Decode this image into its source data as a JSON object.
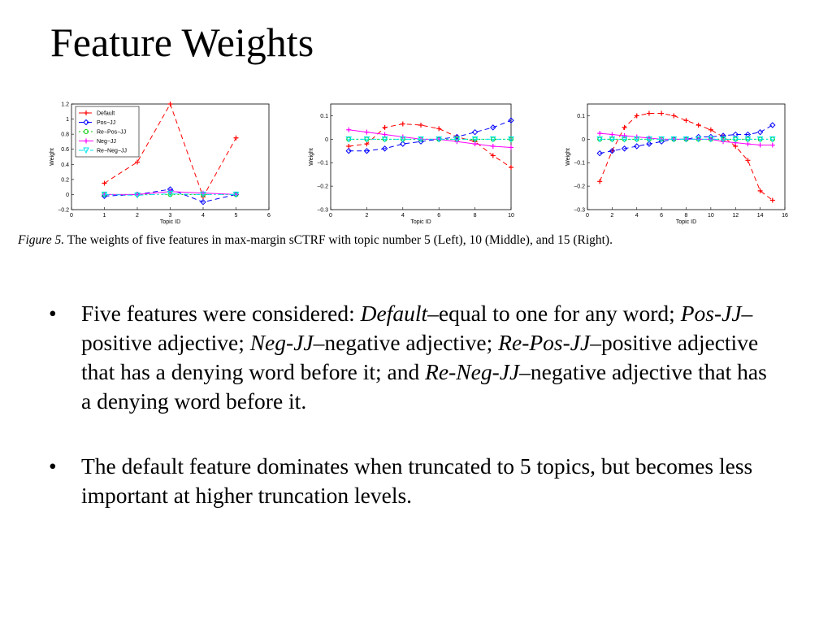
{
  "slide": {
    "title": "Feature Weights"
  },
  "caption": {
    "prefix": "Figure 5.",
    "text": "The weights of five features in max-margin sCTRF with topic number 5 (Left), 10 (Middle), and 15 (Right)."
  },
  "bullets": [
    {
      "marker": "•",
      "parts": [
        {
          "t": "Five features were considered: "
        },
        {
          "t": "Default",
          "i": true
        },
        {
          "t": "–equal to one for any word; "
        },
        {
          "t": "Pos",
          "i": true
        },
        {
          "t": "-"
        },
        {
          "t": "JJ",
          "i": true
        },
        {
          "t": "–positive adjective; "
        },
        {
          "t": "Neg",
          "i": true
        },
        {
          "t": "-"
        },
        {
          "t": "JJ",
          "i": true
        },
        {
          "t": "–negative adjective; "
        },
        {
          "t": "Re",
          "i": true
        },
        {
          "t": "-"
        },
        {
          "t": "Pos",
          "i": true
        },
        {
          "t": "-"
        },
        {
          "t": "JJ",
          "i": true
        },
        {
          "t": "–positive adjective that has a denying word before it; and "
        },
        {
          "t": "Re",
          "i": true
        },
        {
          "t": "-"
        },
        {
          "t": "Neg",
          "i": true
        },
        {
          "t": "-"
        },
        {
          "t": "JJ",
          "i": true
        },
        {
          "t": "–negative adjective that has a denying word before it."
        }
      ]
    },
    {
      "marker": "•",
      "parts": [
        {
          "t": "The default feature dominates when truncated to 5 topics, but becomes less important at higher truncation levels."
        }
      ]
    }
  ],
  "series_styles": [
    {
      "name": "Default",
      "color": "#ff0000",
      "marker": "plus",
      "dash": "6,4"
    },
    {
      "name": "Pos-JJ",
      "color": "#0000ff",
      "marker": "diamond",
      "dash": "6,4"
    },
    {
      "name": "Re-Pos-JJ",
      "color": "#00cc00",
      "marker": "circle",
      "dash": "2,3"
    },
    {
      "name": "Neg-JJ",
      "color": "#ff00ff",
      "marker": "plus",
      "dash": ""
    },
    {
      "name": "Re-Neg-JJ",
      "color": "#00e5ee",
      "marker": "triangle",
      "dash": "6,3,2,3"
    }
  ],
  "chart_data": [
    {
      "type": "line",
      "xlabel": "Topic ID",
      "ylabel": "Weight",
      "xlim": [
        0,
        6
      ],
      "ylim": [
        -0.2,
        1.2
      ],
      "xticks": [
        "0",
        "1",
        "2",
        "3",
        "4",
        "5",
        "6"
      ],
      "yticks": [
        "−0.2",
        "0",
        "0.2",
        "0.4",
        "0.6",
        "0.8",
        "1",
        "1.2"
      ],
      "legend_placement": "top-left",
      "x": [
        1,
        2,
        3,
        4,
        5
      ],
      "series": [
        {
          "name": "Default",
          "values": [
            0.15,
            0.43,
            1.2,
            -0.03,
            0.75
          ]
        },
        {
          "name": "Pos−JJ",
          "values": [
            -0.02,
            0.0,
            0.07,
            -0.1,
            0.0
          ]
        },
        {
          "name": "Re−Pos−JJ",
          "values": [
            0.0,
            0.0,
            0.0,
            0.0,
            0.0
          ]
        },
        {
          "name": "Neg−JJ",
          "values": [
            0.0,
            0.0,
            0.04,
            0.02,
            0.0
          ]
        },
        {
          "name": "Re−Neg−JJ",
          "values": [
            0.0,
            -0.01,
            0.01,
            0.0,
            0.0
          ]
        }
      ]
    },
    {
      "type": "line",
      "xlabel": "Topic ID",
      "ylabel": "Weight",
      "xlim": [
        0,
        10
      ],
      "ylim": [
        -0.3,
        0.15
      ],
      "xticks": [
        "0",
        "2",
        "4",
        "6",
        "8",
        "10"
      ],
      "yticks": [
        "−0.3",
        "−0.2",
        "−0.1",
        "0",
        "0.1"
      ],
      "x": [
        1,
        2,
        3,
        4,
        5,
        6,
        7,
        8,
        9,
        10
      ],
      "series": [
        {
          "values": [
            -0.03,
            -0.02,
            0.05,
            0.065,
            0.06,
            0.045,
            0.01,
            -0.01,
            -0.07,
            -0.12
          ]
        },
        {
          "values": [
            -0.05,
            -0.05,
            -0.04,
            -0.02,
            -0.01,
            0.0,
            0.01,
            0.03,
            0.05,
            0.08
          ]
        },
        {
          "values": [
            0.0,
            0.0,
            0.0,
            0.0,
            0.0,
            0.0,
            0.0,
            0.0,
            0.0,
            0.0
          ]
        },
        {
          "values": [
            0.04,
            0.03,
            0.02,
            0.01,
            0.0,
            0.0,
            -0.01,
            -0.02,
            -0.03,
            -0.035
          ]
        },
        {
          "values": [
            0.0,
            0.0,
            0.0,
            0.0,
            0.0,
            0.0,
            0.0,
            0.0,
            0.0,
            0.0
          ]
        }
      ]
    },
    {
      "type": "line",
      "xlabel": "Topic ID",
      "ylabel": "Weight",
      "xlim": [
        0,
        16
      ],
      "ylim": [
        -0.3,
        0.15
      ],
      "xticks": [
        "0",
        "2",
        "4",
        "6",
        "8",
        "10",
        "12",
        "14",
        "16"
      ],
      "yticks": [
        "−0.3",
        "−0.2",
        "−0.1",
        "0",
        "0.1"
      ],
      "x": [
        1,
        2,
        3,
        4,
        5,
        6,
        7,
        8,
        9,
        10,
        11,
        12,
        13,
        14,
        15
      ],
      "series": [
        {
          "values": [
            -0.18,
            -0.05,
            0.05,
            0.1,
            0.11,
            0.11,
            0.1,
            0.08,
            0.06,
            0.04,
            0.01,
            -0.03,
            -0.09,
            -0.22,
            -0.26
          ]
        },
        {
          "values": [
            -0.06,
            -0.05,
            -0.04,
            -0.03,
            -0.02,
            -0.01,
            0.0,
            0.0,
            0.01,
            0.01,
            0.015,
            0.02,
            0.02,
            0.03,
            0.06
          ]
        },
        {
          "values": [
            0.0,
            0.0,
            0.0,
            0.0,
            0.0,
            0.0,
            0.0,
            0.0,
            0.0,
            0.0,
            0.0,
            0.0,
            0.0,
            0.0,
            0.0
          ]
        },
        {
          "values": [
            0.025,
            0.02,
            0.015,
            0.01,
            0.005,
            0.0,
            0.0,
            0.0,
            0.0,
            0.0,
            -0.01,
            -0.015,
            -0.02,
            -0.025,
            -0.025
          ]
        },
        {
          "values": [
            0.0,
            0.0,
            0.0,
            0.0,
            0.0,
            0.0,
            0.0,
            0.0,
            0.0,
            0.0,
            0.0,
            0.0,
            0.0,
            0.0,
            0.0
          ]
        }
      ]
    }
  ]
}
